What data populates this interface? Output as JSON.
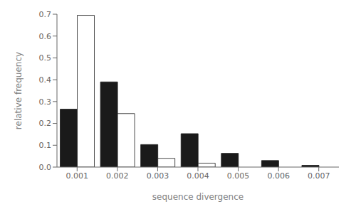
{
  "chart_data": {
    "type": "bar",
    "xlabel": "sequence divergence",
    "ylabel": "relative frequency",
    "categories": [
      "0.001",
      "0.002",
      "0.003",
      "0.004",
      "0.005",
      "0.006",
      "0.007"
    ],
    "series": [
      {
        "color": "#1a1a1a",
        "values": [
          0.265,
          0.39,
          0.103,
          0.153,
          0.063,
          0.03,
          0.008
        ]
      },
      {
        "color": "#ffffff",
        "values": [
          0.695,
          0.245,
          0.04,
          0.018,
          0.0,
          0.0,
          0.0
        ]
      }
    ],
    "ylim": [
      0,
      0.7
    ],
    "yticks": [
      {
        "value": 0.0,
        "label": "0.0"
      },
      0.1,
      0.2,
      0.3,
      0.4,
      0.5,
      0.6,
      0.7
    ],
    "grid": false
  }
}
